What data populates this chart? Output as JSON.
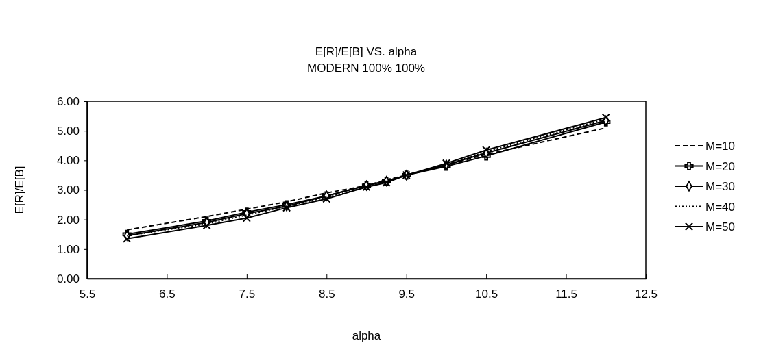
{
  "chart_data": {
    "type": "line",
    "title": "E[R]/E[B] VS. alpha",
    "subtitle": "MODERN 100% 100%",
    "xlabel": "alpha",
    "ylabel": "E[R]/E[B]",
    "x": [
      6,
      7,
      7.5,
      8,
      8.5,
      9,
      9.25,
      9.5,
      10,
      10.5,
      12
    ],
    "xlim": [
      5.5,
      12.5
    ],
    "xticks": [
      5.5,
      6.5,
      7.5,
      8.5,
      9.5,
      10.5,
      11.5,
      12.5
    ],
    "ylim": [
      0,
      6
    ],
    "yticks": [
      {
        "value": 0,
        "label": "0.00"
      },
      {
        "value": 1,
        "label": "1.00"
      },
      {
        "value": 2,
        "label": "2.00"
      },
      {
        "value": 3,
        "label": "3.00"
      },
      {
        "value": 4,
        "label": "4.00"
      },
      {
        "value": 5,
        "label": "5.00"
      },
      {
        "value": 6,
        "label": "6.00"
      }
    ],
    "grid": false,
    "legend": "right",
    "series": [
      {
        "name": "M=10",
        "color": "#000000",
        "marker": "none",
        "line_style": "dashed",
        "values": [
          1.65,
          2.1,
          2.35,
          2.6,
          2.9,
          3.15,
          3.35,
          3.5,
          3.85,
          4.2,
          5.1
        ]
      },
      {
        "name": "M=20",
        "color": "#000000",
        "marker": "cross",
        "line_style": "solid",
        "values": [
          1.5,
          1.95,
          2.25,
          2.5,
          2.8,
          3.15,
          3.3,
          3.5,
          3.8,
          4.15,
          5.3
        ]
      },
      {
        "name": "M=30",
        "color": "#000000",
        "marker": "diamond",
        "line_style": "solid",
        "values": [
          1.45,
          1.9,
          2.2,
          2.45,
          2.8,
          3.15,
          3.3,
          3.5,
          3.85,
          4.25,
          5.35
        ]
      },
      {
        "name": "M=40",
        "color": "#000000",
        "marker": "none",
        "line_style": "dotted",
        "values": [
          1.45,
          1.85,
          2.15,
          2.45,
          2.75,
          3.1,
          3.3,
          3.5,
          3.85,
          4.3,
          5.4
        ]
      },
      {
        "name": "M=50",
        "color": "#000000",
        "marker": "x",
        "line_style": "solid",
        "values": [
          1.35,
          1.8,
          2.05,
          2.4,
          2.7,
          3.1,
          3.25,
          3.5,
          3.9,
          4.35,
          5.45
        ]
      }
    ]
  }
}
